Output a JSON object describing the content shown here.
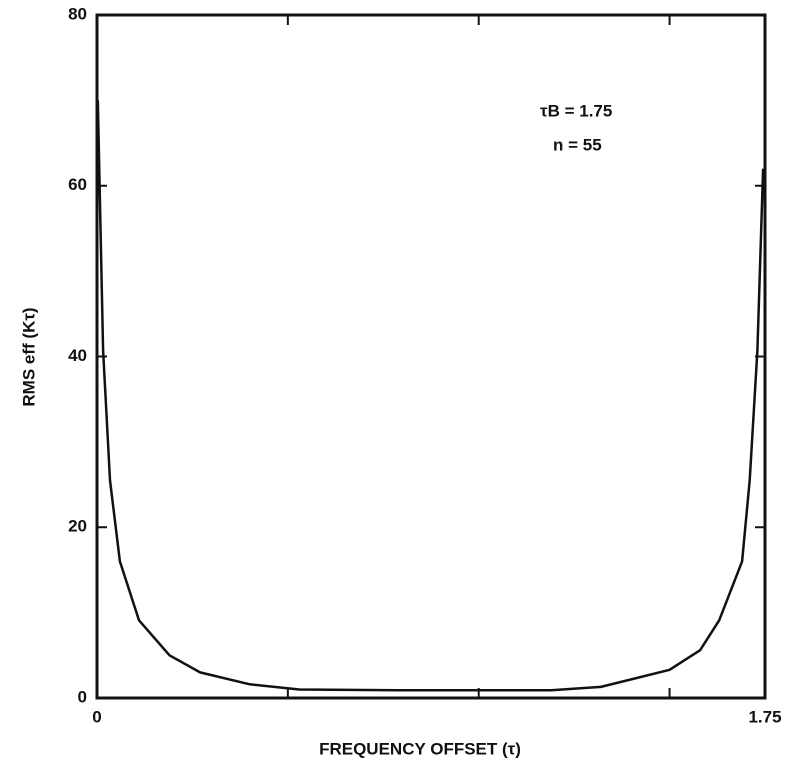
{
  "chart_data": {
    "type": "line",
    "xlabel": "FREQUENCY OFFSET  (τ)",
    "ylabel": "RMS eff  (Kτ)",
    "annotations": [
      "τB = 1.75",
      "n = 55"
    ],
    "x": [
      0.002,
      0.016,
      0.034,
      0.06,
      0.11,
      0.19,
      0.27,
      0.4,
      0.53,
      0.79,
      1.0,
      1.19,
      1.32,
      1.5,
      1.58,
      1.63,
      1.69,
      1.71,
      1.73,
      1.745
    ],
    "values": [
      70,
      40.7,
      25.5,
      16,
      9.1,
      5,
      3,
      1.6,
      1.0,
      0.9,
      0.9,
      0.9,
      1.3,
      3.3,
      5.6,
      9.1,
      16,
      25.5,
      40.7,
      62
    ],
    "color": "#111111",
    "xlim": [
      0,
      1.75
    ],
    "xticks": [
      0,
      1.75
    ],
    "xminorticks": [
      0.5,
      1.0,
      1.5
    ],
    "ylim": [
      0,
      80
    ],
    "yticks": [
      0,
      20,
      40,
      60,
      80
    ]
  }
}
